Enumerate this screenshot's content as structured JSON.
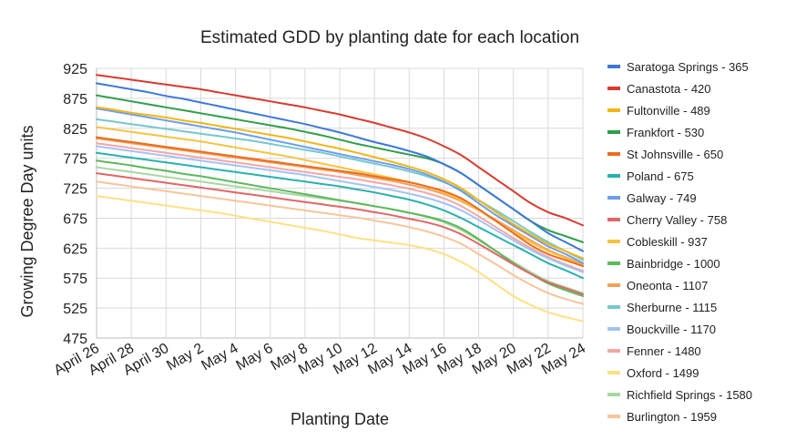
{
  "chart_data": {
    "type": "line",
    "title": "Estimated GDD by planting date for each location",
    "xlabel": "Planting Date",
    "ylabel": "Growing Degree Day units",
    "ylim": [
      475,
      925
    ],
    "yticks": [
      475,
      525,
      575,
      625,
      675,
      725,
      775,
      825,
      875,
      925
    ],
    "x": [
      "April 26",
      "April 27",
      "April 28",
      "April 29",
      "April 30",
      "May 1",
      "May 2",
      "May 3",
      "May 4",
      "May 5",
      "May 6",
      "May 7",
      "May 8",
      "May 9",
      "May 10",
      "May 11",
      "May 12",
      "May 13",
      "May 14",
      "May 15",
      "May 16",
      "May 17",
      "May 18",
      "May 19",
      "May 20",
      "May 21",
      "May 22",
      "May 23",
      "May 24"
    ],
    "xtick_labels": [
      "April 26",
      "April 28",
      "April 30",
      "May 2",
      "May 4",
      "May 6",
      "May 8",
      "May 10",
      "May 12",
      "May 14",
      "May 16",
      "May 18",
      "May 20",
      "May 22",
      "May 24"
    ],
    "grid": true,
    "legend_position": "right",
    "series": [
      {
        "name": "Saratoga Springs - 365",
        "color": "#3c78d8",
        "values": [
          900,
          895,
          890,
          885,
          879,
          874,
          868,
          862,
          856,
          850,
          844,
          838,
          832,
          825,
          818,
          810,
          802,
          795,
          787,
          778,
          765,
          750,
          730,
          710,
          690,
          670,
          650,
          635,
          620
        ]
      },
      {
        "name": "Canastota - 420",
        "color": "#d93a2f",
        "values": [
          914,
          910,
          906,
          902,
          898,
          894,
          890,
          885,
          880,
          875,
          870,
          865,
          860,
          854,
          848,
          841,
          834,
          826,
          818,
          808,
          795,
          780,
          760,
          740,
          720,
          700,
          685,
          675,
          663
        ]
      },
      {
        "name": "Fultonville - 489",
        "color": "#f1b614",
        "values": [
          860,
          856,
          851,
          847,
          843,
          838,
          834,
          829,
          824,
          819,
          814,
          809,
          803,
          797,
          791,
          784,
          777,
          769,
          761,
          752,
          740,
          725,
          705,
          685,
          665,
          648,
          632,
          620,
          608
        ]
      },
      {
        "name": "Frankfort - 530",
        "color": "#2e9e4a",
        "values": [
          880,
          875,
          870,
          865,
          860,
          855,
          850,
          845,
          840,
          835,
          830,
          825,
          819,
          813,
          806,
          799,
          793,
          787,
          781,
          775,
          765,
          750,
          730,
          710,
          690,
          670,
          655,
          645,
          635
        ]
      },
      {
        "name": "St Johnsville - 650",
        "color": "#ea6d1f",
        "values": [
          810,
          806,
          802,
          798,
          794,
          790,
          786,
          782,
          778,
          774,
          770,
          766,
          762,
          758,
          754,
          750,
          745,
          740,
          735,
          728,
          720,
          708,
          690,
          670,
          650,
          630,
          615,
          605,
          595
        ]
      },
      {
        "name": "Poland - 675",
        "color": "#2bb0b0",
        "values": [
          784,
          780,
          776,
          772,
          768,
          764,
          760,
          756,
          752,
          748,
          744,
          740,
          736,
          732,
          728,
          723,
          718,
          712,
          706,
          698,
          688,
          675,
          660,
          645,
          630,
          615,
          600,
          588,
          575
        ]
      },
      {
        "name": "Galway - 749",
        "color": "#6d9eeb",
        "values": [
          858,
          853,
          848,
          843,
          838,
          833,
          828,
          823,
          818,
          812,
          806,
          800,
          794,
          788,
          782,
          776,
          770,
          764,
          757,
          748,
          736,
          720,
          700,
          680,
          662,
          645,
          628,
          615,
          600
        ]
      },
      {
        "name": "Cherry Valley - 758",
        "color": "#e06666",
        "values": [
          750,
          746,
          742,
          738,
          734,
          730,
          726,
          722,
          718,
          714,
          710,
          706,
          702,
          698,
          694,
          690,
          685,
          680,
          674,
          668,
          660,
          648,
          632,
          615,
          598,
          582,
          568,
          558,
          548
        ]
      },
      {
        "name": "Cobleskill - 937",
        "color": "#f6c342",
        "values": [
          827,
          823,
          819,
          815,
          811,
          807,
          803,
          798,
          793,
          788,
          783,
          778,
          772,
          766,
          760,
          754,
          748,
          742,
          735,
          728,
          718,
          705,
          688,
          670,
          652,
          635,
          620,
          608,
          595
        ]
      },
      {
        "name": "Bainbridge - 1000",
        "color": "#5cb85c",
        "values": [
          771,
          767,
          763,
          758,
          754,
          749,
          745,
          740,
          735,
          730,
          725,
          720,
          715,
          710,
          705,
          700,
          695,
          690,
          684,
          678,
          670,
          658,
          640,
          620,
          600,
          582,
          566,
          555,
          545
        ]
      },
      {
        "name": "Oneonta - 1107",
        "color": "#f5a05a",
        "values": [
          808,
          804,
          800,
          796,
          792,
          788,
          784,
          780,
          776,
          772,
          768,
          764,
          760,
          756,
          752,
          747,
          742,
          737,
          731,
          724,
          715,
          703,
          688,
          672,
          655,
          638,
          622,
          610,
          598
        ]
      },
      {
        "name": "Sherburne - 1115",
        "color": "#76c7cc",
        "values": [
          840,
          836,
          832,
          828,
          824,
          820,
          816,
          812,
          808,
          804,
          799,
          794,
          789,
          784,
          778,
          772,
          766,
          760,
          753,
          745,
          735,
          722,
          705,
          688,
          670,
          652,
          635,
          620,
          605
        ]
      },
      {
        "name": "Bouckville - 1170",
        "color": "#a4c2f4",
        "values": [
          795,
          791,
          787,
          783,
          779,
          775,
          771,
          767,
          763,
          759,
          755,
          751,
          747,
          742,
          737,
          732,
          727,
          722,
          716,
          709,
          700,
          688,
          672,
          655,
          638,
          622,
          608,
          596,
          585
        ]
      },
      {
        "name": "Fenner - 1480",
        "color": "#f4a6a6",
        "values": [
          800,
          796,
          792,
          788,
          784,
          780,
          776,
          772,
          768,
          764,
          760,
          756,
          752,
          748,
          744,
          740,
          735,
          730,
          724,
          717,
          708,
          695,
          678,
          660,
          642,
          625,
          610,
          598,
          587
        ]
      },
      {
        "name": "Oxford - 1499",
        "color": "#ffe082",
        "values": [
          712,
          708,
          704,
          700,
          696,
          692,
          688,
          684,
          679,
          674,
          669,
          664,
          659,
          654,
          648,
          642,
          638,
          634,
          630,
          624,
          615,
          602,
          585,
          565,
          545,
          530,
          518,
          510,
          503
        ]
      },
      {
        "name": "Richfield Springs - 1580",
        "color": "#a8d8a0",
        "values": [
          760,
          756,
          752,
          748,
          744,
          740,
          736,
          732,
          728,
          724,
          720,
          716,
          712,
          708,
          704,
          700,
          695,
          690,
          684,
          677,
          668,
          655,
          638,
          620,
          602,
          585,
          570,
          560,
          550
        ]
      },
      {
        "name": "Burlington - 1959",
        "color": "#f8c49a",
        "values": [
          736,
          732,
          728,
          724,
          720,
          716,
          712,
          708,
          704,
          700,
          696,
          692,
          688,
          684,
          680,
          676,
          671,
          666,
          660,
          653,
          644,
          632,
          615,
          598,
          580,
          564,
          550,
          540,
          532
        ]
      }
    ]
  }
}
